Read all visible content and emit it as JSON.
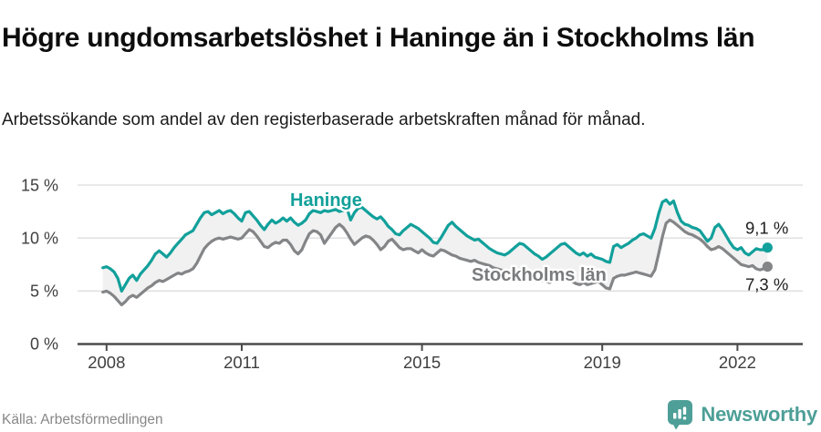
{
  "header": {
    "title": "Högre ungdomsarbetslöshet i Haninge än i Stockholms län",
    "subtitle": "Arbetssökande som andel av den registerbaserade arbetskraften månad för månad."
  },
  "footer": {
    "source": "Källa: Arbetsförmedlingen",
    "brand": "Newsworthy",
    "brand_icon": "newsworthy-speech-bubble-bar-chart-icon"
  },
  "colors": {
    "haninge": "#12a09b",
    "stockholm": "#848587",
    "band_fill": "#f1f1f1",
    "gridline": "#dedede",
    "axis": "#4b4b4b",
    "axis_label": "#3f3f3f",
    "end_label": "#1f1f1f",
    "brand_teal": "#4d9f97",
    "series_label_gray": "#7b7c7e"
  },
  "chart_data": {
    "type": "line",
    "unit": "%",
    "frequency": "monthly",
    "start": "2007-12",
    "end": "2022-09",
    "grid": true,
    "band_fill_between_series": true,
    "ylim": [
      0,
      16
    ],
    "y_ticks": [
      {
        "label": "0 %",
        "value": 0
      },
      {
        "label": "5 %",
        "value": 5
      },
      {
        "label": "10 %",
        "value": 10
      },
      {
        "label": "15 %",
        "value": 15
      }
    ],
    "x_ticks": [
      {
        "label": "2008",
        "year": 2008
      },
      {
        "label": "2011",
        "year": 2011
      },
      {
        "label": "2015",
        "year": 2015
      },
      {
        "label": "2019",
        "year": 2019
      },
      {
        "label": "2022",
        "year": 2022
      }
    ],
    "series": [
      {
        "name": "Haninge",
        "end_label": "9,1 %",
        "last_value": 9.1,
        "values": [
          7.2,
          7.3,
          7.1,
          6.8,
          6.2,
          5.0,
          5.6,
          6.2,
          6.5,
          6.0,
          6.6,
          7.0,
          7.4,
          7.9,
          8.5,
          8.8,
          8.5,
          8.2,
          8.6,
          9.1,
          9.5,
          9.9,
          10.3,
          10.5,
          10.7,
          11.3,
          11.9,
          12.4,
          12.5,
          12.2,
          12.4,
          12.6,
          12.3,
          12.5,
          12.6,
          12.3,
          11.9,
          11.6,
          12.4,
          12.5,
          12.1,
          11.7,
          11.2,
          10.8,
          11.3,
          11.7,
          11.4,
          11.6,
          11.9,
          11.6,
          11.9,
          11.5,
          11.2,
          11.4,
          11.7,
          12.3,
          12.6,
          12.5,
          12.4,
          12.6,
          12.5,
          12.6,
          12.7,
          12.5,
          12.6,
          12.8,
          11.7,
          12.4,
          12.8,
          12.9,
          12.6,
          12.3,
          12.0,
          11.8,
          12.0,
          11.6,
          11.1,
          10.8,
          10.4,
          10.3,
          10.7,
          11.0,
          11.3,
          11.1,
          10.9,
          10.6,
          10.3,
          10.0,
          9.6,
          9.5,
          10.0,
          10.6,
          11.2,
          11.5,
          11.1,
          10.8,
          10.5,
          10.2,
          10.0,
          9.8,
          9.9,
          9.6,
          9.3,
          9.0,
          8.8,
          8.6,
          8.5,
          8.4,
          8.6,
          8.9,
          9.2,
          9.5,
          9.4,
          9.1,
          8.8,
          8.5,
          8.3,
          8.0,
          8.2,
          8.5,
          8.8,
          9.1,
          9.4,
          9.5,
          9.2,
          8.9,
          8.6,
          8.4,
          8.6,
          8.3,
          8.5,
          8.2,
          8.1,
          8.0,
          7.8,
          7.7,
          9.2,
          9.4,
          9.1,
          9.3,
          9.5,
          9.8,
          10.0,
          10.3,
          10.4,
          10.2,
          10.0,
          10.9,
          12.3,
          13.4,
          13.6,
          13.2,
          13.5,
          12.4,
          11.6,
          11.3,
          11.2,
          11.0,
          10.9,
          10.7,
          10.2,
          9.7,
          10.0,
          11.0,
          11.3,
          10.8,
          10.2,
          9.6,
          9.1,
          8.9,
          9.1,
          8.6,
          8.4,
          8.7,
          9.0,
          8.9,
          8.9,
          9.1
        ]
      },
      {
        "name": "Stockholms län",
        "end_label": "7,3 %",
        "last_value": 7.3,
        "values": [
          4.9,
          5.0,
          4.8,
          4.5,
          4.1,
          3.7,
          4.0,
          4.4,
          4.6,
          4.4,
          4.7,
          5.0,
          5.3,
          5.5,
          5.8,
          6.0,
          5.9,
          6.1,
          6.3,
          6.5,
          6.7,
          6.6,
          6.8,
          6.9,
          7.1,
          7.6,
          8.3,
          9.0,
          9.4,
          9.7,
          9.9,
          10.0,
          9.9,
          10.0,
          10.1,
          10.0,
          9.9,
          10.0,
          10.4,
          10.8,
          10.6,
          10.2,
          9.7,
          9.2,
          9.1,
          9.4,
          9.6,
          9.5,
          9.8,
          9.8,
          9.4,
          8.8,
          8.5,
          8.9,
          9.7,
          10.4,
          10.7,
          10.6,
          10.3,
          9.5,
          10.0,
          10.5,
          11.0,
          11.3,
          11.0,
          10.5,
          9.9,
          9.4,
          9.7,
          10.0,
          10.2,
          10.1,
          9.8,
          9.4,
          8.9,
          9.2,
          9.7,
          9.9,
          9.5,
          9.1,
          8.9,
          9.0,
          9.0,
          8.8,
          8.6,
          8.9,
          8.6,
          8.4,
          8.3,
          8.6,
          8.9,
          8.8,
          8.6,
          8.4,
          8.3,
          8.1,
          8.0,
          7.9,
          7.8,
          7.9,
          7.7,
          7.6,
          7.5,
          7.4,
          7.2,
          7.1,
          7.0,
          6.9,
          6.8,
          6.6,
          6.7,
          6.8,
          6.6,
          6.5,
          6.4,
          6.2,
          6.1,
          6.0,
          5.9,
          5.8,
          6.0,
          6.2,
          6.3,
          6.1,
          6.0,
          5.9,
          5.7,
          5.6,
          5.8,
          5.6,
          5.7,
          5.8,
          5.9,
          5.6,
          5.3,
          5.2,
          6.2,
          6.4,
          6.5,
          6.5,
          6.6,
          6.7,
          6.8,
          6.7,
          6.6,
          6.5,
          6.4,
          7.0,
          8.5,
          10.1,
          11.4,
          11.7,
          11.5,
          11.2,
          10.9,
          10.6,
          10.4,
          10.3,
          10.1,
          9.9,
          9.6,
          9.2,
          8.9,
          9.0,
          9.2,
          9.0,
          8.7,
          8.4,
          8.1,
          7.8,
          7.5,
          7.4,
          7.3,
          7.4,
          7.1,
          7.0,
          7.1,
          7.3
        ]
      }
    ]
  }
}
